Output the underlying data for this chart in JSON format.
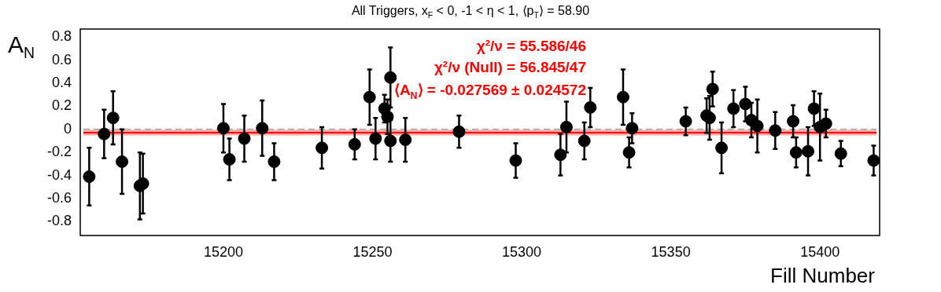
{
  "chart_data": {
    "type": "scatter",
    "title": "All Triggers, x$_{F}$ < 0, -1 < η < 1, ⟨p$_{T}$⟩ = 58.90",
    "xlabel": "Fill Number",
    "ylabel": "A$_{N}$",
    "annotations": [
      "χ²/ν = 55.586/46",
      "χ²/ν (Null) = 56.845/47",
      "⟨A$_{N}$⟩ = -0.027569 ± 0.024572"
    ],
    "x": [
      15155,
      15160,
      15163,
      15166,
      15172,
      15173,
      15200,
      15202,
      15207,
      15213,
      15217,
      15233,
      15244,
      15249,
      15251,
      15254,
      15255,
      15256,
      15256,
      15261,
      15279,
      15298,
      15313,
      15315,
      15321,
      15323,
      15334,
      15336,
      15337,
      15355,
      15362,
      15363,
      15364,
      15367,
      15371,
      15375,
      15377,
      15379,
      15385,
      15391,
      15392,
      15396,
      15398,
      15400,
      15402,
      15407,
      15418
    ],
    "series": [
      {
        "color": "#000000",
        "values": [
          -0.41,
          -0.04,
          0.1,
          -0.28,
          -0.49,
          -0.47,
          0.01,
          -0.26,
          -0.08,
          0.01,
          -0.28,
          -0.16,
          -0.13,
          0.28,
          -0.08,
          0.18,
          0.11,
          0.45,
          -0.1,
          -0.09,
          -0.02,
          -0.27,
          -0.22,
          0.02,
          -0.1,
          0.19,
          0.28,
          -0.2,
          0.01,
          0.07,
          0.12,
          0.1,
          0.35,
          -0.16,
          0.18,
          0.22,
          0.08,
          0.03,
          -0.01,
          0.07,
          -0.2,
          -0.19,
          0.18,
          0.02,
          0.05,
          -0.21,
          -0.27
        ],
        "errors": [
          0.25,
          0.21,
          0.23,
          0.28,
          0.29,
          0.26,
          0.21,
          0.18,
          0.2,
          0.24,
          0.16,
          0.18,
          0.13,
          0.24,
          0.18,
          0.12,
          0.15,
          0.26,
          0.18,
          0.19,
          0.14,
          0.15,
          0.18,
          0.22,
          0.16,
          0.17,
          0.24,
          0.13,
          0.13,
          0.12,
          0.15,
          0.19,
          0.15,
          0.22,
          0.16,
          0.15,
          0.15,
          0.23,
          0.16,
          0.14,
          0.13,
          0.21,
          0.15,
          0.29,
          0.12,
          0.11,
          0.13
        ]
      }
    ],
    "ref_lines": [
      {
        "axis": "y",
        "value": 0,
        "color": "#b0b0b0",
        "line_style": "dashed"
      },
      {
        "axis": "y",
        "value": -0.027569,
        "color": "#ff0000",
        "line_style": "solid"
      }
    ],
    "bands": [
      {
        "axis": "y",
        "from": -0.052141,
        "to": -0.002997,
        "color": "#ff0000"
      }
    ],
    "xlim": [
      15152,
      15420
    ],
    "ylim": [
      -0.92,
      0.87
    ],
    "xticks": [
      15200,
      15250,
      15300,
      15350,
      15400
    ],
    "yticks": [
      -0.8,
      -0.6,
      -0.4,
      -0.2,
      {
        "value": 0,
        "label": "0"
      },
      0.2,
      0.4,
      0.6,
      0.8
    ],
    "grid": false,
    "legend": false,
    "marker": "circle"
  }
}
